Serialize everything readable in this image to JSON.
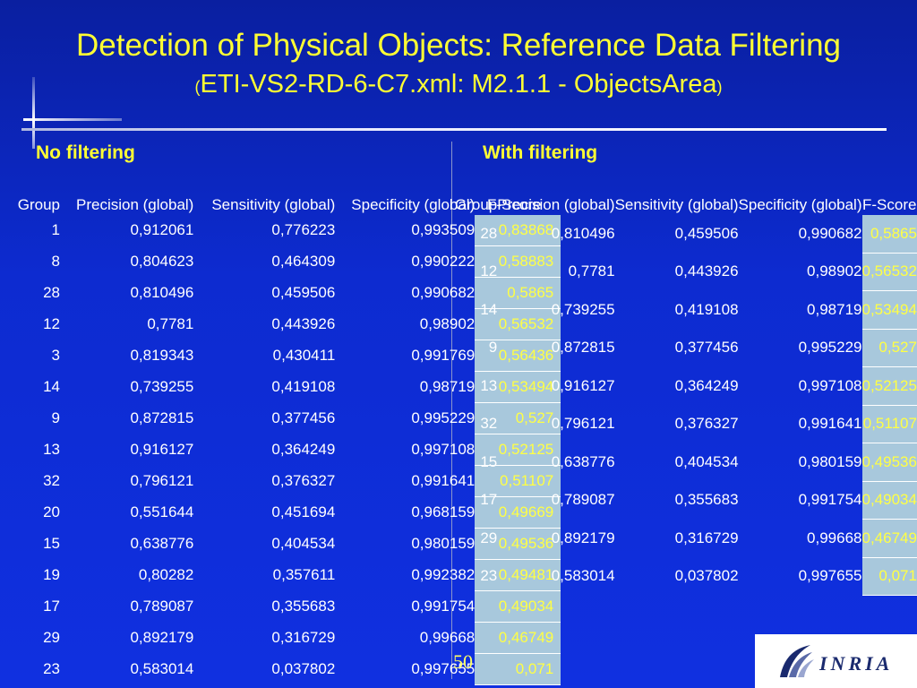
{
  "title": "Detection of Physical Objects: Reference Data Filtering",
  "subtitle": {
    "open_paren": "(",
    "text": "ETI-VS2-RD-6-C7.xml: M2.1.1 - ObjectsArea",
    "close_paren": ")"
  },
  "left": {
    "heading": "No filtering",
    "columns": [
      "Group",
      "Precision (global)",
      "Sensitivity (global)",
      "Specificity (global)",
      "F-Score"
    ],
    "rows": [
      [
        "1",
        "0,912061",
        "0,776223",
        "0,993509",
        "0,83868"
      ],
      [
        "8",
        "0,804623",
        "0,464309",
        "0,990222",
        "0,58883"
      ],
      [
        "28",
        "0,810496",
        "0,459506",
        "0,990682",
        "0,5865"
      ],
      [
        "12",
        "0,7781",
        "0,443926",
        "0,98902",
        "0,56532"
      ],
      [
        "3",
        "0,819343",
        "0,430411",
        "0,991769",
        "0,56436"
      ],
      [
        "14",
        "0,739255",
        "0,419108",
        "0,98719",
        "0,53494"
      ],
      [
        "9",
        "0,872815",
        "0,377456",
        "0,995229",
        "0,527"
      ],
      [
        "13",
        "0,916127",
        "0,364249",
        "0,997108",
        "0,52125"
      ],
      [
        "32",
        "0,796121",
        "0,376327",
        "0,991641",
        "0,51107"
      ],
      [
        "20",
        "0,551644",
        "0,451694",
        "0,968159",
        "0,49669"
      ],
      [
        "15",
        "0,638776",
        "0,404534",
        "0,980159",
        "0,49536"
      ],
      [
        "19",
        "0,80282",
        "0,357611",
        "0,992382",
        "0,49481"
      ],
      [
        "17",
        "0,789087",
        "0,355683",
        "0,991754",
        "0,49034"
      ],
      [
        "29",
        "0,892179",
        "0,316729",
        "0,99668",
        "0,46749"
      ],
      [
        "23",
        "0,583014",
        "0,037802",
        "0,997655",
        "0,071"
      ]
    ]
  },
  "right": {
    "heading": "With filtering",
    "columns": [
      "Group",
      "Precision (global)",
      "Sensitivity (global)",
      "Specificity (global)",
      "F-Score"
    ],
    "rows": [
      [
        "28",
        "0,810496",
        "0,459506",
        "0,990682",
        "0,5865"
      ],
      [
        "12",
        "0,7781",
        "0,443926",
        "0,98902",
        "0,56532"
      ],
      [
        "14",
        "0,739255",
        "0,419108",
        "0,98719",
        "0,53494"
      ],
      [
        "9",
        "0,872815",
        "0,377456",
        "0,995229",
        "0,527"
      ],
      [
        "13",
        "0,916127",
        "0,364249",
        "0,997108",
        "0,52125"
      ],
      [
        "32",
        "0,796121",
        "0,376327",
        "0,991641",
        "0,51107"
      ],
      [
        "15",
        "0,638776",
        "0,404534",
        "0,980159",
        "0,49536"
      ],
      [
        "17",
        "0,789087",
        "0,355683",
        "0,991754",
        "0,49034"
      ],
      [
        "29",
        "0,892179",
        "0,316729",
        "0,99668",
        "0,46749"
      ],
      [
        "23",
        "0,583014",
        "0,037802",
        "0,997655",
        "0,071"
      ]
    ]
  },
  "page_number": "50",
  "logo_text": "INRIA",
  "colors": {
    "title": "#ffff33",
    "fscore_bg": "#a8c8dc",
    "background": "#0d2bd0"
  }
}
